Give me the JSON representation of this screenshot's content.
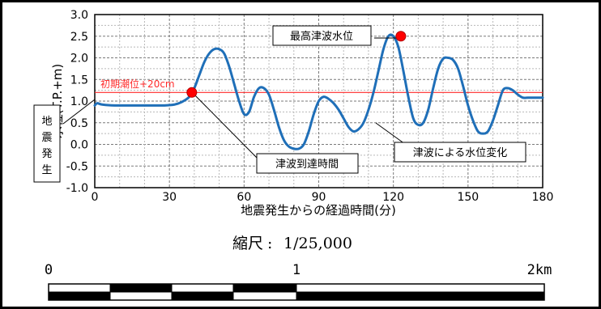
{
  "chart_data": {
    "type": "line",
    "xlabel": "地震発生からの経過時間(分)",
    "ylabel": "水位(T.P.+m)",
    "xlim": [
      0,
      180
    ],
    "ylim": [
      -1.0,
      3.0
    ],
    "xticks": [
      "0",
      "30",
      "60",
      "90",
      "120",
      "150",
      "180"
    ],
    "yticks": [
      "-1.0",
      "-0.5",
      "0.0",
      "0.5",
      "1.0",
      "1.5",
      "2.0",
      "2.5",
      "3.0"
    ],
    "grid": true,
    "series": [
      {
        "x": [
          0,
          1,
          3,
          8,
          15,
          22,
          28,
          32,
          35,
          38,
          40,
          42,
          44,
          46,
          48,
          50,
          52,
          54,
          56,
          58,
          60,
          62,
          64,
          66,
          68,
          70,
          72,
          74,
          76,
          78,
          80,
          82,
          84,
          86,
          88,
          90,
          92,
          94,
          96,
          98,
          100,
          102,
          104,
          106,
          108,
          110,
          112,
          114,
          116,
          118,
          120,
          122,
          124,
          126,
          128,
          130,
          132,
          134,
          136,
          138,
          140,
          142,
          144,
          146,
          148,
          150,
          152,
          154,
          156,
          158,
          160,
          162,
          164,
          166,
          168,
          170,
          172,
          174,
          176,
          178,
          180
        ],
        "y": [
          0.9,
          0.95,
          0.92,
          0.9,
          0.9,
          0.9,
          0.9,
          0.92,
          0.98,
          1.1,
          1.3,
          1.6,
          1.9,
          2.1,
          2.2,
          2.2,
          2.1,
          1.8,
          1.4,
          1.0,
          0.7,
          0.75,
          1.1,
          1.3,
          1.3,
          1.15,
          0.8,
          0.4,
          0.1,
          -0.05,
          -0.1,
          -0.1,
          0.0,
          0.3,
          0.7,
          1.0,
          1.1,
          1.05,
          0.95,
          0.8,
          0.6,
          0.4,
          0.3,
          0.35,
          0.5,
          0.8,
          1.2,
          1.7,
          2.2,
          2.5,
          2.5,
          2.25,
          1.7,
          1.1,
          0.6,
          0.45,
          0.5,
          0.8,
          1.3,
          1.75,
          1.98,
          2.0,
          1.95,
          1.75,
          1.35,
          0.9,
          0.55,
          0.3,
          0.25,
          0.3,
          0.55,
          0.9,
          1.25,
          1.3,
          1.25,
          1.15,
          1.08,
          1.08,
          1.08,
          1.08,
          1.08
        ],
        "color": "#1f6fb8"
      }
    ],
    "reference_line": {
      "y": 1.2,
      "label": "初期潮位+20cm",
      "color": "#ff2a2a"
    },
    "markers": [
      {
        "x": 39,
        "y": 1.2,
        "color": "#ff0000"
      },
      {
        "x": 123,
        "y": 2.5,
        "color": "#ff0000"
      }
    ],
    "callouts": {
      "quake": "地震発生",
      "max": "最高津波水位",
      "arrival": "津波到達時間",
      "change": "津波による水位変化"
    }
  },
  "scale": {
    "label": "縮尺",
    "value": "1/25,000",
    "ticks": [
      "0",
      "1",
      "2km"
    ]
  }
}
